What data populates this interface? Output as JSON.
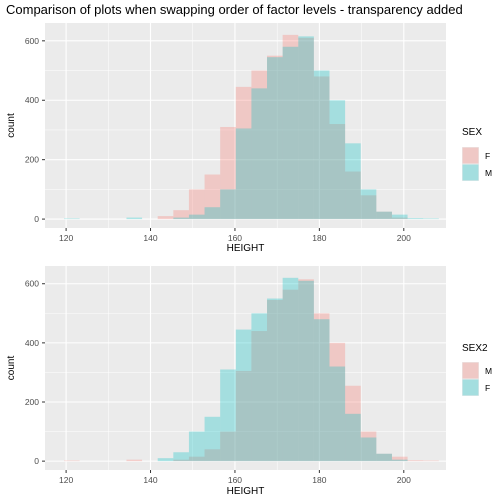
{
  "title": "Comparison of plots when swapping order of factor levels - transparency added",
  "colors": {
    "red": "#F8766D",
    "cyan": "#00BFC4",
    "panel_bg": "#EBEBEB",
    "grid": "#FFFFFF"
  },
  "chart_data": [
    {
      "type": "bar",
      "stacked": false,
      "xlabel": "HEIGHT",
      "ylabel": "count",
      "xlim": [
        115,
        210
      ],
      "ylim": [
        -30,
        660
      ],
      "x_ticks": [
        "120",
        "140",
        "160",
        "180",
        "200"
      ],
      "y_ticks": [
        "0",
        "200",
        "400",
        "600"
      ],
      "bin_width": 3.7,
      "bin_starts": [
        119.5,
        123.2,
        126.9,
        130.6,
        134.3,
        138.0,
        141.7,
        145.4,
        149.1,
        152.8,
        156.5,
        160.2,
        163.9,
        167.6,
        171.3,
        175.0,
        178.7,
        182.4,
        186.1,
        189.8,
        193.5,
        197.2,
        200.9,
        204.6
      ],
      "legend_title": "SEX",
      "legend": [
        "F",
        "M"
      ],
      "series": [
        {
          "name": "F",
          "color": "#F8766D",
          "values": [
            0,
            0,
            0,
            0,
            0,
            0,
            10,
            30,
            100,
            150,
            310,
            445,
            500,
            550,
            620,
            610,
            480,
            320,
            160,
            80,
            25,
            5,
            0,
            0
          ]
        },
        {
          "name": "M",
          "color": "#00BFC4",
          "values": [
            2,
            0,
            0,
            0,
            5,
            0,
            0,
            5,
            15,
            40,
            100,
            305,
            440,
            545,
            580,
            615,
            500,
            400,
            255,
            100,
            25,
            15,
            3,
            2
          ]
        }
      ]
    },
    {
      "type": "bar",
      "stacked": false,
      "xlabel": "HEIGHT",
      "ylabel": "count",
      "xlim": [
        115,
        210
      ],
      "ylim": [
        -30,
        660
      ],
      "x_ticks": [
        "120",
        "140",
        "160",
        "180",
        "200"
      ],
      "y_ticks": [
        "0",
        "200",
        "400",
        "600"
      ],
      "bin_width": 3.7,
      "bin_starts": [
        119.5,
        123.2,
        126.9,
        130.6,
        134.3,
        138.0,
        141.7,
        145.4,
        149.1,
        152.8,
        156.5,
        160.2,
        163.9,
        167.6,
        171.3,
        175.0,
        178.7,
        182.4,
        186.1,
        189.8,
        193.5,
        197.2,
        200.9,
        204.6
      ],
      "legend_title": "SEX2",
      "legend": [
        "M",
        "F"
      ],
      "series": [
        {
          "name": "M",
          "color": "#F8766D",
          "values": [
            2,
            0,
            0,
            0,
            5,
            0,
            0,
            5,
            15,
            40,
            100,
            305,
            440,
            545,
            580,
            615,
            500,
            400,
            255,
            100,
            25,
            15,
            3,
            2
          ]
        },
        {
          "name": "F",
          "color": "#00BFC4",
          "values": [
            0,
            0,
            0,
            0,
            0,
            0,
            10,
            30,
            100,
            150,
            310,
            445,
            500,
            550,
            620,
            610,
            480,
            320,
            160,
            80,
            25,
            5,
            0,
            0
          ]
        }
      ]
    }
  ]
}
